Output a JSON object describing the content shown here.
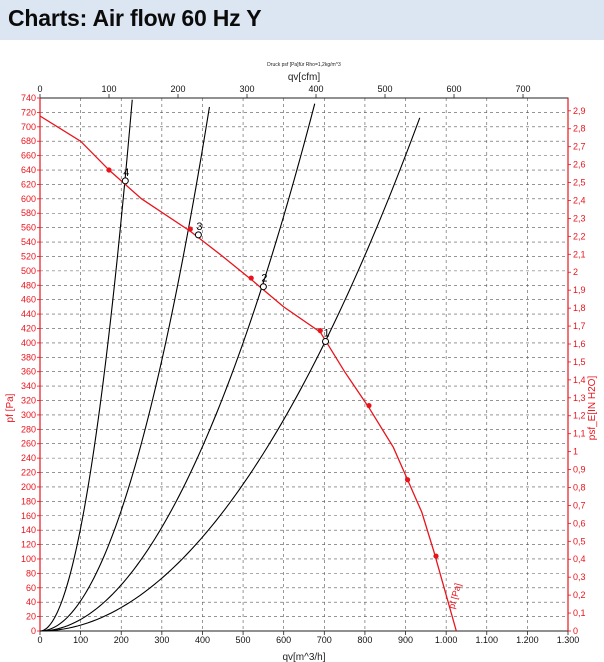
{
  "page": {
    "title": "Charts: Air flow 60 Hz Y"
  },
  "chart_data": {
    "type": "line",
    "caption": "Druck psf [Pa]für Rho=1,2kg/m^3",
    "x_bottom": {
      "label": "qv[m^3/h]",
      "lim": [
        0,
        1300
      ],
      "ticks": [
        0,
        100,
        200,
        300,
        400,
        500,
        600,
        700,
        800,
        900,
        1000,
        1100,
        1200,
        1300
      ],
      "tick_labels": [
        "0",
        "100",
        "200",
        "300",
        "400",
        "500",
        "600",
        "700",
        "800",
        "900",
        "1.000",
        "1.100",
        "1.200",
        "1.300"
      ]
    },
    "x_top": {
      "label": "qv[cfm]",
      "lim": [
        0,
        765.2
      ],
      "ticks": [
        0,
        100,
        200,
        300,
        400,
        500,
        600,
        700
      ],
      "tick_labels": [
        "0",
        "100",
        "200",
        "300",
        "400",
        "500",
        "600",
        "700"
      ]
    },
    "y_left": {
      "label": "pf [Pa]",
      "lim": [
        0,
        740
      ],
      "ticks": [
        0,
        20,
        40,
        60,
        80,
        100,
        120,
        140,
        160,
        180,
        200,
        220,
        240,
        260,
        280,
        300,
        320,
        340,
        360,
        380,
        400,
        420,
        440,
        460,
        480,
        500,
        520,
        540,
        560,
        580,
        600,
        620,
        640,
        660,
        680,
        700,
        720,
        740
      ],
      "tick_labels": [
        "0",
        "20",
        "40",
        "60",
        "80",
        "100",
        "120",
        "140",
        "160",
        "180",
        "200",
        "220",
        "240",
        "260",
        "280",
        "300",
        "320",
        "340",
        "360",
        "380",
        "400",
        "420",
        "440",
        "460",
        "480",
        "500",
        "520",
        "540",
        "560",
        "580",
        "600",
        "620",
        "640",
        "660",
        "680",
        "700",
        "720",
        "740"
      ]
    },
    "y_right": {
      "label": "psf_E[IN H2O]",
      "lim": [
        0,
        2.9714
      ],
      "ticks": [
        0,
        0.1,
        0.2,
        0.3,
        0.4,
        0.5,
        0.6,
        0.7,
        0.8,
        0.9,
        1.0,
        1.1,
        1.2,
        1.3,
        1.4,
        1.5,
        1.6,
        1.7,
        1.8,
        1.9,
        2.0,
        2.1,
        2.2,
        2.3,
        2.4,
        2.5,
        2.6,
        2.7,
        2.8,
        2.9
      ],
      "tick_labels": [
        "0",
        "0,1",
        "0,2",
        "0,3",
        "0,4",
        "0,5",
        "0,6",
        "0,7",
        "0,8",
        "0,9",
        "1",
        "1,1",
        "1,2",
        "1,3",
        "1,4",
        "1,5",
        "1,6",
        "1,7",
        "1,8",
        "1,9",
        "2",
        "2,1",
        "2,2",
        "2,3",
        "2,4",
        "2,5",
        "2,6",
        "2,7",
        "2,8",
        "2,9"
      ]
    },
    "fan_curve": {
      "name": "pf [Pa]",
      "color": "#e8141c",
      "x": [
        0,
        100,
        170,
        250,
        370,
        450,
        520,
        600,
        690,
        750,
        810,
        870,
        905,
        940,
        970,
        1000,
        1025
      ],
      "y": [
        715,
        680,
        640,
        600,
        555,
        520,
        488,
        450,
        415,
        360,
        310,
        255,
        210,
        165,
        110,
        50,
        0
      ],
      "markers_x": [
        170,
        370,
        520,
        690,
        810,
        905,
        975
      ],
      "markers_y": [
        640,
        558,
        490,
        417,
        313,
        210,
        104
      ]
    },
    "system_curves": [
      {
        "label": "1",
        "k": 0.000815,
        "x_end": 935,
        "op_x": 703,
        "op_y": 402
      },
      {
        "label": "2",
        "k": 0.0016,
        "x_end": 685,
        "op_x": 550,
        "op_y": 478
      },
      {
        "label": "3",
        "k": 0.00418,
        "x_end": 445,
        "op_x": 390,
        "op_y": 550
      },
      {
        "label": "4",
        "k": 0.0143,
        "x_end": 230,
        "op_x": 210,
        "op_y": 625
      }
    ],
    "curve_color": "#000000",
    "grid": true
  }
}
